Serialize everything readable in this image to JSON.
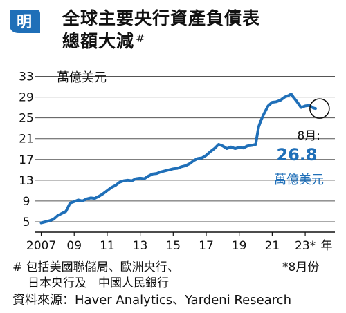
{
  "badge": {
    "char": "明",
    "color": "#1f6fb8"
  },
  "title_line1": "全球主要央行資產負債表",
  "title_line2": "總額大減",
  "title_mark": "#",
  "chart_data": {
    "type": "line",
    "ylabel": "萬億美元",
    "xlabel": "年",
    "y_ticks": [
      5,
      9,
      13,
      17,
      21,
      25,
      29,
      33
    ],
    "ylim": [
      3,
      34
    ],
    "x_ticks": [
      2007,
      2009,
      2011,
      2013,
      2015,
      2017,
      2019,
      2021,
      2023
    ],
    "x_tick_labels": [
      "2007",
      "09",
      "11",
      "13",
      "15",
      "17",
      "19",
      "21",
      "23*",
      "年"
    ],
    "xlim": [
      2006.6,
      2024.8
    ],
    "grid": "horizontal",
    "line_color": "#1f6fb8",
    "series": [
      {
        "x": [
          2007.0,
          2007.25,
          2007.5,
          2007.75,
          2008.0,
          2008.25,
          2008.5,
          2008.75,
          2009.0,
          2009.25,
          2009.5,
          2009.75,
          2010.0,
          2010.25,
          2010.5,
          2010.75,
          2011.0,
          2011.25,
          2011.5,
          2011.75,
          2012.0,
          2012.25,
          2012.5,
          2012.75,
          2013.0,
          2013.25,
          2013.5,
          2013.75,
          2014.0,
          2014.25,
          2014.5,
          2014.75,
          2015.0,
          2015.25,
          2015.5,
          2015.75,
          2016.0,
          2016.25,
          2016.5,
          2016.75,
          2017.0,
          2017.25,
          2017.5,
          2017.75,
          2018.0,
          2018.25,
          2018.5,
          2018.75,
          2019.0,
          2019.25,
          2019.5,
          2019.75,
          2020.0,
          2020.17,
          2020.33,
          2020.5,
          2020.75,
          2021.0,
          2021.25,
          2021.5,
          2021.75,
          2022.0,
          2022.15,
          2022.3,
          2022.5,
          2022.75,
          2023.0,
          2023.25,
          2023.5,
          2023.62
        ],
        "y": [
          4.8,
          5.0,
          5.2,
          5.5,
          6.2,
          6.6,
          7.0,
          8.6,
          8.9,
          9.2,
          9.0,
          9.4,
          9.6,
          9.5,
          9.9,
          10.4,
          11.0,
          11.6,
          12.0,
          12.6,
          12.9,
          13.0,
          12.9,
          13.3,
          13.4,
          13.3,
          13.8,
          14.2,
          14.3,
          14.6,
          14.8,
          15.0,
          15.2,
          15.3,
          15.6,
          15.8,
          16.2,
          16.8,
          17.2,
          17.3,
          17.8,
          18.5,
          19.1,
          19.9,
          19.6,
          19.1,
          19.4,
          19.1,
          19.3,
          19.2,
          19.6,
          19.7,
          19.9,
          23.2,
          24.6,
          25.8,
          27.3,
          28.0,
          28.1,
          28.4,
          29.0,
          29.3,
          29.6,
          28.9,
          28.1,
          27.0,
          27.3,
          27.4,
          26.9,
          26.8
        ]
      }
    ],
    "annotation": {
      "label": "8月:",
      "value": "26.8",
      "unit": "萬億美元",
      "x": 2023.62,
      "y": 26.8
    }
  },
  "footnotes": {
    "line1": "# 包括美國聯儲局、歐洲央行、",
    "line1_right": "*8月份",
    "line2": "日本央行及　中國人民銀行"
  },
  "source": "資料來源：Haver Analytics、Yardeni Research"
}
